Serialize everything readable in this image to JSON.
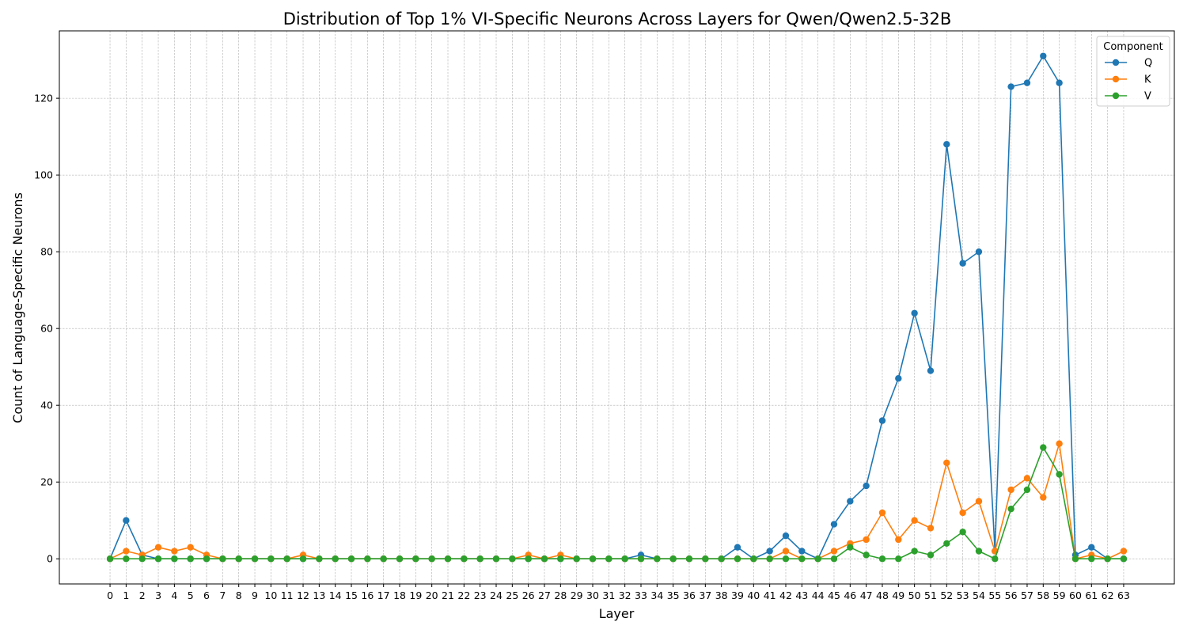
{
  "chart_data": {
    "type": "line",
    "title": "Distribution of Top 1% VI-Specific Neurons Across Layers for Qwen/Qwen2.5-32B",
    "xlabel": "Layer",
    "ylabel": "Count of Language-Specific Neurons",
    "x": [
      0,
      1,
      2,
      3,
      4,
      5,
      6,
      7,
      8,
      9,
      10,
      11,
      12,
      13,
      14,
      15,
      16,
      17,
      18,
      19,
      20,
      21,
      22,
      23,
      24,
      25,
      26,
      27,
      28,
      29,
      30,
      31,
      32,
      33,
      34,
      35,
      36,
      37,
      38,
      39,
      40,
      41,
      42,
      43,
      44,
      45,
      46,
      47,
      48,
      49,
      50,
      51,
      52,
      53,
      54,
      55,
      56,
      57,
      58,
      59,
      60,
      61,
      62,
      63
    ],
    "xlim": [
      -3.15,
      66.15
    ],
    "ylim": [
      -6.55,
      137.55
    ],
    "yticks": [
      0,
      20,
      40,
      60,
      80,
      100,
      120
    ],
    "grid": true,
    "legend": {
      "title": "Component",
      "placement": "top-right"
    },
    "series": [
      {
        "name": "Q",
        "color": "#1f77b4",
        "values": [
          0,
          10,
          1,
          0,
          0,
          0,
          0,
          0,
          0,
          0,
          0,
          0,
          0,
          0,
          0,
          0,
          0,
          0,
          0,
          0,
          0,
          0,
          0,
          0,
          0,
          0,
          0,
          0,
          0,
          0,
          0,
          0,
          0,
          1,
          0,
          0,
          0,
          0,
          0,
          3,
          0,
          2,
          6,
          2,
          0,
          9,
          15,
          19,
          36,
          47,
          64,
          49,
          108,
          77,
          80,
          2,
          123,
          124,
          131,
          124,
          1,
          3,
          0,
          0
        ]
      },
      {
        "name": "K",
        "color": "#ff7f0e",
        "values": [
          0,
          2,
          1,
          3,
          2,
          3,
          1,
          0,
          0,
          0,
          0,
          0,
          1,
          0,
          0,
          0,
          0,
          0,
          0,
          0,
          0,
          0,
          0,
          0,
          0,
          0,
          1,
          0,
          1,
          0,
          0,
          0,
          0,
          0,
          0,
          0,
          0,
          0,
          0,
          0,
          0,
          0,
          2,
          0,
          0,
          2,
          4,
          5,
          12,
          5,
          10,
          8,
          25,
          12,
          15,
          2,
          18,
          21,
          16,
          30,
          0,
          1,
          0,
          2
        ]
      },
      {
        "name": "V",
        "color": "#2ca02c",
        "values": [
          0,
          0,
          0,
          0,
          0,
          0,
          0,
          0,
          0,
          0,
          0,
          0,
          0,
          0,
          0,
          0,
          0,
          0,
          0,
          0,
          0,
          0,
          0,
          0,
          0,
          0,
          0,
          0,
          0,
          0,
          0,
          0,
          0,
          0,
          0,
          0,
          0,
          0,
          0,
          0,
          0,
          0,
          0,
          0,
          0,
          0,
          3,
          1,
          0,
          0,
          2,
          1,
          4,
          7,
          2,
          0,
          13,
          18,
          29,
          22,
          0,
          0,
          0,
          0
        ]
      }
    ]
  }
}
